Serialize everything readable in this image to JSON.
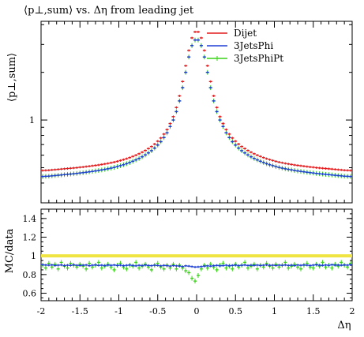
{
  "chart_data": [
    {
      "type": "scatter",
      "title": "⟨p⊥,sum⟩ vs. Δη from leading jet",
      "ylabel": "⟨p⊥,sum⟩",
      "xlabel": "",
      "xlim": [
        -2,
        2
      ],
      "ylim": [
        0.3,
        4.2
      ],
      "yscale": "log",
      "x_ticks": [
        "-2",
        "-1.5",
        "-1",
        "-0.5",
        "0",
        "0.5",
        "1",
        "1.5",
        "2"
      ],
      "y_ticks": [
        "1"
      ],
      "legend_position": "top-right",
      "colors": {
        "Dijet": "#e31a1c",
        "3JetsPhi": "#1f3fd6",
        "3JetsPhiPt": "#39d417"
      },
      "x": [
        -1.98,
        -1.94,
        -1.9,
        -1.86,
        -1.82,
        -1.78,
        -1.74,
        -1.7,
        -1.66,
        -1.62,
        -1.58,
        -1.54,
        -1.5,
        -1.46,
        -1.42,
        -1.38,
        -1.34,
        -1.3,
        -1.26,
        -1.22,
        -1.18,
        -1.14,
        -1.1,
        -1.06,
        -1.02,
        -0.98,
        -0.94,
        -0.9,
        -0.86,
        -0.82,
        -0.78,
        -0.74,
        -0.7,
        -0.66,
        -0.62,
        -0.58,
        -0.54,
        -0.5,
        -0.46,
        -0.42,
        -0.38,
        -0.34,
        -0.3,
        -0.26,
        -0.22,
        -0.18,
        -0.14,
        -0.1,
        -0.06,
        -0.02,
        0.02,
        0.06,
        0.1,
        0.14,
        0.18,
        0.22,
        0.26,
        0.3,
        0.34,
        0.38,
        0.42,
        0.46,
        0.5,
        0.54,
        0.58,
        0.62,
        0.66,
        0.7,
        0.74,
        0.78,
        0.82,
        0.86,
        0.9,
        0.94,
        0.98,
        1.02,
        1.06,
        1.1,
        1.14,
        1.18,
        1.22,
        1.26,
        1.3,
        1.34,
        1.38,
        1.42,
        1.46,
        1.5,
        1.54,
        1.58,
        1.62,
        1.66,
        1.7,
        1.74,
        1.78,
        1.82,
        1.86,
        1.9,
        1.94,
        1.98
      ],
      "series": [
        {
          "name": "Dijet",
          "values": [
            0.48,
            0.481,
            0.482,
            0.484,
            0.486,
            0.488,
            0.49,
            0.492,
            0.494,
            0.496,
            0.498,
            0.5,
            0.503,
            0.505,
            0.508,
            0.511,
            0.514,
            0.517,
            0.52,
            0.524,
            0.528,
            0.532,
            0.537,
            0.542,
            0.548,
            0.555,
            0.562,
            0.57,
            0.579,
            0.589,
            0.6,
            0.612,
            0.626,
            0.642,
            0.66,
            0.68,
            0.705,
            0.735,
            0.77,
            0.815,
            0.87,
            0.95,
            1.05,
            1.2,
            1.42,
            1.75,
            2.2,
            2.75,
            3.3,
            3.6,
            3.6,
            3.3,
            2.75,
            2.2,
            1.75,
            1.42,
            1.2,
            1.05,
            0.95,
            0.87,
            0.815,
            0.77,
            0.735,
            0.705,
            0.68,
            0.66,
            0.642,
            0.626,
            0.612,
            0.6,
            0.589,
            0.579,
            0.57,
            0.562,
            0.555,
            0.548,
            0.542,
            0.537,
            0.532,
            0.528,
            0.524,
            0.52,
            0.517,
            0.514,
            0.511,
            0.508,
            0.505,
            0.503,
            0.5,
            0.498,
            0.496,
            0.494,
            0.492,
            0.49,
            0.488,
            0.486,
            0.484,
            0.482,
            0.481,
            0.48
          ]
        },
        {
          "name": "3JetsPhi",
          "values": [
            0.44,
            0.441,
            0.442,
            0.444,
            0.446,
            0.448,
            0.45,
            0.452,
            0.454,
            0.456,
            0.458,
            0.46,
            0.463,
            0.465,
            0.468,
            0.471,
            0.474,
            0.477,
            0.48,
            0.484,
            0.488,
            0.492,
            0.497,
            0.502,
            0.508,
            0.515,
            0.522,
            0.53,
            0.539,
            0.549,
            0.56,
            0.572,
            0.586,
            0.602,
            0.62,
            0.64,
            0.665,
            0.695,
            0.73,
            0.775,
            0.83,
            0.91,
            1.0,
            1.13,
            1.32,
            1.6,
            2.0,
            2.5,
            2.95,
            3.2,
            3.2,
            2.95,
            2.5,
            2.0,
            1.6,
            1.32,
            1.13,
            1.0,
            0.91,
            0.83,
            0.775,
            0.73,
            0.695,
            0.665,
            0.64,
            0.62,
            0.602,
            0.586,
            0.572,
            0.56,
            0.549,
            0.539,
            0.53,
            0.522,
            0.515,
            0.508,
            0.502,
            0.497,
            0.492,
            0.488,
            0.484,
            0.48,
            0.477,
            0.474,
            0.471,
            0.468,
            0.465,
            0.463,
            0.46,
            0.458,
            0.456,
            0.454,
            0.452,
            0.45,
            0.448,
            0.446,
            0.444,
            0.442,
            0.441,
            0.44
          ]
        },
        {
          "name": "3JetsPhiPt",
          "values": [
            0.44,
            0.441,
            0.442,
            0.444,
            0.446,
            0.448,
            0.45,
            0.452,
            0.454,
            0.456,
            0.458,
            0.46,
            0.463,
            0.465,
            0.468,
            0.471,
            0.474,
            0.477,
            0.48,
            0.484,
            0.488,
            0.492,
            0.497,
            0.502,
            0.508,
            0.515,
            0.522,
            0.53,
            0.539,
            0.549,
            0.56,
            0.572,
            0.586,
            0.602,
            0.62,
            0.64,
            0.665,
            0.695,
            0.73,
            0.775,
            0.83,
            0.91,
            1.0,
            1.13,
            1.32,
            1.6,
            2.0,
            2.5,
            2.95,
            3.2,
            3.2,
            2.95,
            2.5,
            2.0,
            1.6,
            1.32,
            1.13,
            1.0,
            0.91,
            0.83,
            0.775,
            0.73,
            0.695,
            0.665,
            0.64,
            0.62,
            0.602,
            0.586,
            0.572,
            0.56,
            0.549,
            0.539,
            0.53,
            0.522,
            0.515,
            0.508,
            0.502,
            0.497,
            0.492,
            0.488,
            0.484,
            0.48,
            0.477,
            0.474,
            0.471,
            0.468,
            0.465,
            0.463,
            0.46,
            0.458,
            0.456,
            0.454,
            0.452,
            0.45,
            0.448,
            0.446,
            0.444,
            0.442,
            0.441,
            0.44
          ]
        }
      ]
    },
    {
      "type": "scatter",
      "title": "",
      "ylabel": "MC/data",
      "xlabel": "Δη",
      "xlim": [
        -2,
        2
      ],
      "ylim": [
        0.52,
        1.5
      ],
      "x_ticks": [
        "-2",
        "-1.5",
        "-1",
        "-0.5",
        "0",
        "0.5",
        "1",
        "1.5",
        "2"
      ],
      "y_ticks": [
        "0.6",
        "0.8",
        "1",
        "1.2",
        "1.4"
      ],
      "reference_band": {
        "value": 1.0,
        "color": "#f0e442"
      },
      "x": [
        -1.98,
        -1.94,
        -1.9,
        -1.86,
        -1.82,
        -1.78,
        -1.74,
        -1.7,
        -1.66,
        -1.62,
        -1.58,
        -1.54,
        -1.5,
        -1.46,
        -1.42,
        -1.38,
        -1.34,
        -1.3,
        -1.26,
        -1.22,
        -1.18,
        -1.14,
        -1.1,
        -1.06,
        -1.02,
        -0.98,
        -0.94,
        -0.9,
        -0.86,
        -0.82,
        -0.78,
        -0.74,
        -0.7,
        -0.66,
        -0.62,
        -0.58,
        -0.54,
        -0.5,
        -0.46,
        -0.42,
        -0.38,
        -0.34,
        -0.3,
        -0.26,
        -0.22,
        -0.18,
        -0.14,
        -0.1,
        -0.06,
        -0.02,
        0.02,
        0.06,
        0.1,
        0.14,
        0.18,
        0.22,
        0.26,
        0.3,
        0.34,
        0.38,
        0.42,
        0.46,
        0.5,
        0.54,
        0.58,
        0.62,
        0.66,
        0.7,
        0.74,
        0.78,
        0.82,
        0.86,
        0.9,
        0.94,
        0.98,
        1.02,
        1.06,
        1.1,
        1.14,
        1.18,
        1.22,
        1.26,
        1.3,
        1.34,
        1.38,
        1.42,
        1.46,
        1.5,
        1.54,
        1.58,
        1.62,
        1.66,
        1.7,
        1.74,
        1.78,
        1.82,
        1.86,
        1.9,
        1.94,
        1.98
      ],
      "series": [
        {
          "name": "Dijet",
          "values": [
            1.0,
            1.0,
            1.0,
            1.0,
            1.0,
            1.0,
            1.0,
            1.0,
            1.0,
            1.0,
            1.0,
            1.0,
            1.0,
            1.0,
            1.0,
            1.0,
            1.0,
            1.0,
            1.0,
            1.0,
            1.0,
            1.0,
            1.0,
            1.0,
            1.0,
            1.0,
            1.0,
            1.0,
            1.0,
            1.0,
            1.0,
            1.0,
            1.0,
            1.0,
            1.0,
            1.0,
            1.0,
            1.0,
            1.0,
            1.0,
            1.0,
            1.0,
            1.0,
            1.0,
            1.0,
            1.0,
            1.0,
            1.0,
            1.0,
            1.0,
            1.0,
            1.0,
            1.0,
            1.0,
            1.0,
            1.0,
            1.0,
            1.0,
            1.0,
            1.0,
            1.0,
            1.0,
            1.0,
            1.0,
            1.0,
            1.0,
            1.0,
            1.0,
            1.0,
            1.0,
            1.0,
            1.0,
            1.0,
            1.0,
            1.0,
            1.0,
            1.0,
            1.0,
            1.0,
            1.0,
            1.0,
            1.0,
            1.0,
            1.0,
            1.0,
            1.0,
            1.0,
            1.0,
            1.0,
            1.0,
            1.0,
            1.0,
            1.0,
            1.0,
            1.0,
            1.0,
            1.0,
            1.0,
            1.0,
            1.0
          ]
        },
        {
          "name": "3JetsPhi",
          "values": [
            0.905,
            0.902,
            0.9,
            0.903,
            0.897,
            0.9,
            0.902,
            0.896,
            0.9,
            0.898,
            0.904,
            0.899,
            0.897,
            0.9,
            0.902,
            0.895,
            0.9,
            0.903,
            0.898,
            0.9,
            0.896,
            0.901,
            0.899,
            0.902,
            0.897,
            0.9,
            0.895,
            0.899,
            0.902,
            0.897,
            0.893,
            0.899,
            0.896,
            0.901,
            0.897,
            0.895,
            0.9,
            0.897,
            0.893,
            0.898,
            0.895,
            0.89,
            0.896,
            0.893,
            0.89,
            0.886,
            0.893,
            0.89,
            0.885,
            0.88,
            0.882,
            0.885,
            0.89,
            0.893,
            0.89,
            0.895,
            0.898,
            0.893,
            0.896,
            0.9,
            0.895,
            0.898,
            0.9,
            0.896,
            0.899,
            0.902,
            0.897,
            0.9,
            0.898,
            0.901,
            0.897,
            0.9,
            0.903,
            0.899,
            0.9,
            0.897,
            0.901,
            0.899,
            0.902,
            0.898,
            0.9,
            0.896,
            0.902,
            0.899,
            0.903,
            0.9,
            0.897,
            0.901,
            0.904,
            0.9,
            0.898,
            0.902,
            0.899,
            0.905,
            0.9,
            0.902,
            0.899,
            0.903,
            0.901,
            0.905
          ]
        },
        {
          "name": "3JetsPhiPt",
          "values": [
            0.9,
            0.87,
            0.92,
            0.88,
            0.91,
            0.86,
            0.93,
            0.89,
            0.87,
            0.92,
            0.9,
            0.88,
            0.91,
            0.89,
            0.86,
            0.92,
            0.88,
            0.9,
            0.93,
            0.87,
            0.89,
            0.91,
            0.88,
            0.85,
            0.9,
            0.92,
            0.88,
            0.86,
            0.9,
            0.89,
            0.93,
            0.87,
            0.89,
            0.91,
            0.88,
            0.85,
            0.9,
            0.92,
            0.88,
            0.86,
            0.9,
            0.87,
            0.91,
            0.86,
            0.9,
            0.87,
            0.84,
            0.82,
            0.76,
            0.73,
            0.79,
            0.86,
            0.9,
            0.87,
            0.91,
            0.88,
            0.85,
            0.9,
            0.92,
            0.87,
            0.89,
            0.86,
            0.91,
            0.88,
            0.9,
            0.93,
            0.87,
            0.89,
            0.91,
            0.86,
            0.9,
            0.88,
            0.92,
            0.89,
            0.87,
            0.91,
            0.88,
            0.9,
            0.93,
            0.87,
            0.89,
            0.91,
            0.88,
            0.86,
            0.9,
            0.92,
            0.88,
            0.87,
            0.91,
            0.89,
            0.93,
            0.88,
            0.9,
            0.87,
            0.91,
            0.89,
            0.93,
            0.9,
            0.88,
            0.92
          ]
        }
      ]
    }
  ]
}
